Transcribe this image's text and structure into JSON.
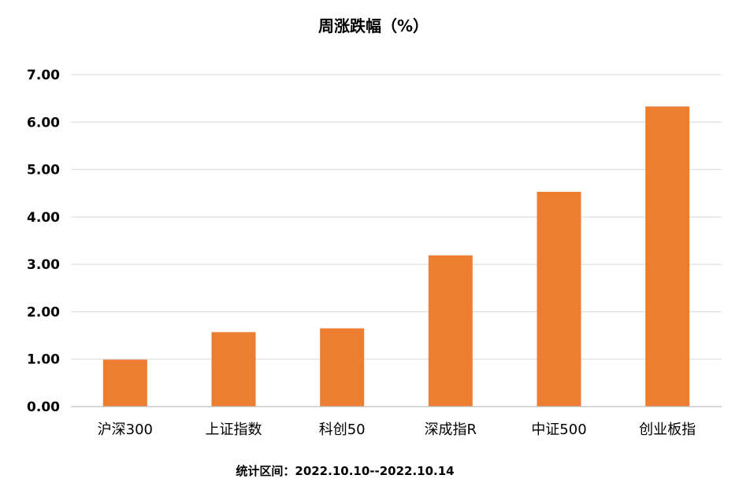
{
  "chart_data": {
    "type": "bar",
    "title": "周涨跌幅（%）",
    "categories": [
      "沪深300",
      "上证指数",
      "科创50",
      "深成指R",
      "中证500",
      "创业板指"
    ],
    "values": [
      0.99,
      1.57,
      1.65,
      3.19,
      4.53,
      6.33
    ],
    "ylim": [
      0,
      7
    ],
    "yticks": [
      "0.00",
      "1.00",
      "2.00",
      "3.00",
      "4.00",
      "5.00",
      "6.00",
      "7.00"
    ],
    "grid": true,
    "legend": "none",
    "bar_color": "#ed7d31"
  },
  "footnote": "统计区间：2022.10.10--2022.10.14"
}
